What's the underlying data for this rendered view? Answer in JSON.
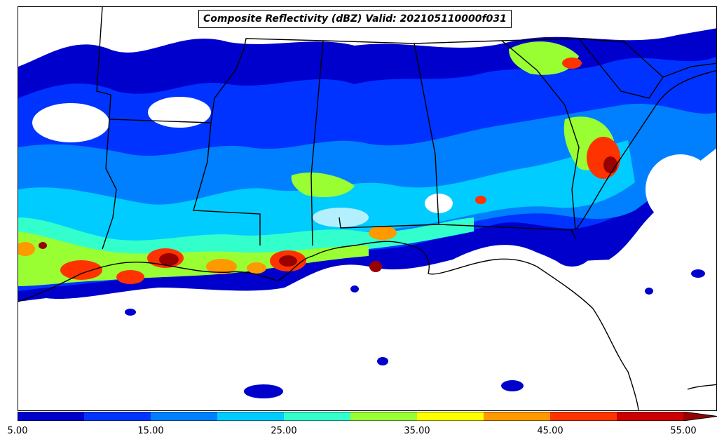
{
  "title": "Composite Reflectivity (dBZ) Valid: 202105110000f031",
  "colorbar": {
    "colors": [
      "#0000cd",
      "#0033ff",
      "#0080ff",
      "#00ccff",
      "#33ffcc",
      "#99ff33",
      "#ffff00",
      "#ff9900",
      "#ff3300",
      "#cc0000",
      "#990000"
    ],
    "tick_labels": [
      "5.00",
      "15.00",
      "25.00",
      "35.00",
      "45.00",
      "55.00"
    ]
  }
}
